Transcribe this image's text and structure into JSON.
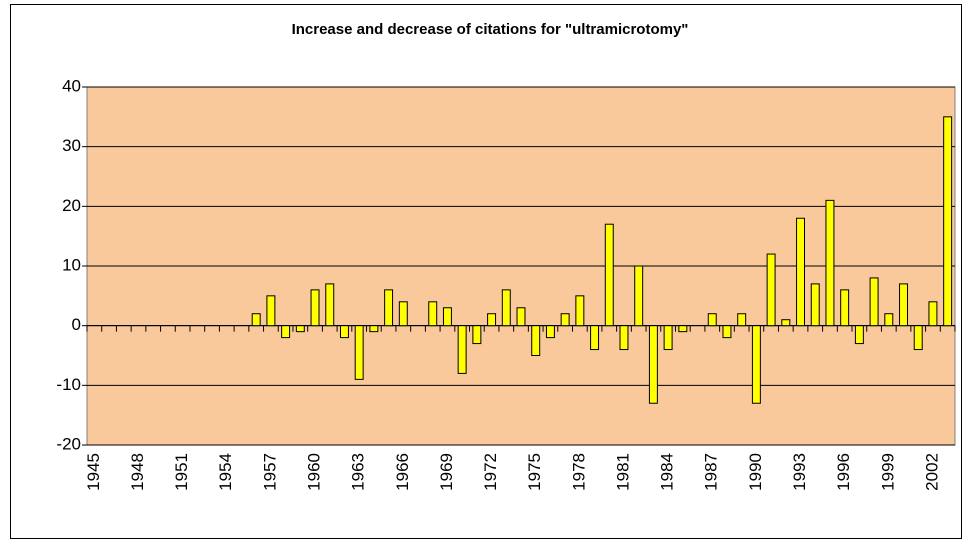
{
  "chart_data": {
    "type": "bar",
    "title": "Increase and decrease of citations for \"ultramicrotomy\"",
    "categories": [
      "1945",
      null,
      null,
      "1948",
      null,
      null,
      "1951",
      null,
      null,
      "1954",
      null,
      null,
      "1957",
      null,
      null,
      "1960",
      null,
      null,
      "1963",
      null,
      null,
      "1966",
      null,
      null,
      "1969",
      null,
      null,
      "1972",
      null,
      null,
      "1975",
      null,
      null,
      "1978",
      null,
      null,
      "1981",
      null,
      null,
      "1984",
      null,
      null,
      "1987",
      null,
      null,
      "1990",
      null,
      null,
      "1993",
      null,
      null,
      "1996",
      null,
      null,
      "1999",
      null,
      null,
      "2002",
      null
    ],
    "values": [
      0,
      0,
      0,
      0,
      0,
      0,
      0,
      0,
      0,
      0,
      0,
      2,
      5,
      -2,
      -1,
      6,
      7,
      -2,
      -9,
      -1,
      6,
      4,
      0,
      4,
      3,
      -8,
      -3,
      2,
      6,
      3,
      -5,
      -2,
      2,
      5,
      -4,
      17,
      -4,
      10,
      -13,
      -4,
      -1,
      0,
      2,
      -2,
      2,
      -13,
      12,
      1,
      18,
      7,
      21,
      6,
      -3,
      8,
      2,
      7,
      -4,
      4,
      35
    ],
    "color": "#ffff00",
    "background": "#f9c89b",
    "ylim": [
      -20,
      40
    ],
    "yticks": [
      -20,
      -10,
      0,
      10,
      20,
      30,
      40
    ],
    "grid": true
  }
}
